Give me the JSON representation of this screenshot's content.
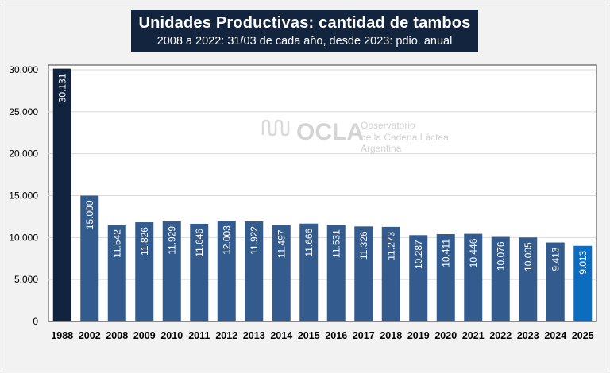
{
  "chart_data": {
    "type": "bar",
    "title": "Unidades Productivas: cantidad de tambos",
    "subtitle": "2008 a 2022: 31/03 de cada año, desde 2023: pdio. anual",
    "categories": [
      "1988",
      "2002",
      "2008",
      "2009",
      "2010",
      "2011",
      "2012",
      "2013",
      "2014",
      "2015",
      "2016",
      "2017",
      "2018",
      "2019",
      "2020",
      "2021",
      "2022",
      "2023",
      "2024",
      "2025"
    ],
    "values": [
      30131,
      15000,
      11542,
      11826,
      11929,
      11646,
      12003,
      11922,
      11497,
      11666,
      11531,
      11326,
      11273,
      10287,
      10411,
      10446,
      10076,
      10005,
      9413,
      9013
    ],
    "data_labels": [
      "30.131",
      "15.000",
      "11.542",
      "11.826",
      "11.929",
      "11.646",
      "12.003",
      "11.922",
      "11.497",
      "11.666",
      "11.531",
      "11.326",
      "11.273",
      "10.287",
      "10.411",
      "10.446",
      "10.076",
      "10.005",
      "9.413",
      "9.013"
    ],
    "ylim": [
      0,
      30000
    ],
    "yticks": [
      0,
      5000,
      10000,
      15000,
      20000,
      25000,
      30000
    ],
    "ytick_labels": [
      "0",
      "5.000",
      "10.000",
      "15.000",
      "20.000",
      "25.000",
      "30.000"
    ],
    "grid": true,
    "colors": {
      "first": "#12233f",
      "default": "#345b8e",
      "last": "#0b6cc0"
    }
  },
  "watermark": {
    "logo": "OCLA",
    "text": [
      "Observatorio",
      "de la Cadena Láctea",
      "Argentina"
    ]
  }
}
